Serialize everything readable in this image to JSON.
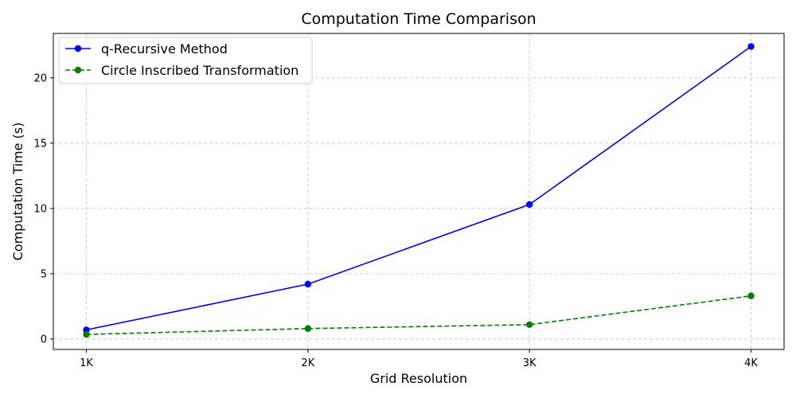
{
  "chart_data": {
    "type": "line",
    "title": "Computation Time Comparison",
    "xlabel": "Grid Resolution",
    "ylabel": "Computation Time (s)",
    "categories": [
      "1K",
      "2K",
      "3K",
      "4K"
    ],
    "ylim": [
      -0.8,
      23.4
    ],
    "yticks": [
      0,
      5,
      10,
      15,
      20
    ],
    "grid": true,
    "legend_position": "top-left",
    "series": [
      {
        "name": "q-Recursive Method",
        "values": [
          0.7,
          4.2,
          10.3,
          22.4
        ],
        "color": "#0000ff",
        "linestyle": "solid",
        "marker": "circle"
      },
      {
        "name": "Circle Inscribed Transformation",
        "values": [
          0.35,
          0.8,
          1.1,
          3.3
        ],
        "color": "#008000",
        "linestyle": "dashed",
        "marker": "circle"
      }
    ]
  }
}
